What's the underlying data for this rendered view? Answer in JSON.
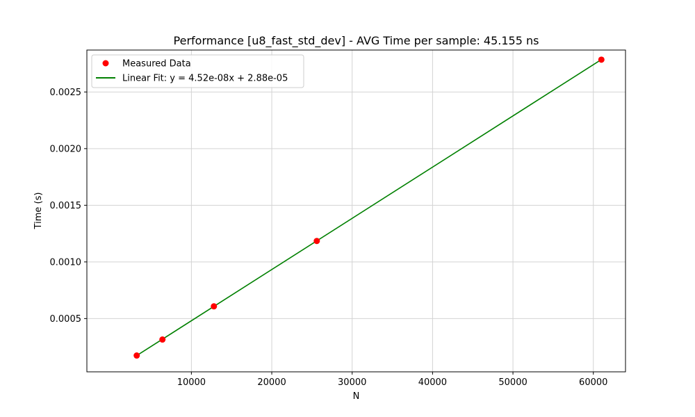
{
  "chart_data": {
    "type": "scatter",
    "title": "Performance [u8_fast_std_dev] - AVG Time per sample: 45.155 ns",
    "xlabel": "N",
    "ylabel": "Time (s)",
    "xlim": [
      -3000,
      64000
    ],
    "ylim": [
      3e-05,
      0.00287
    ],
    "x_ticks": [
      10000,
      20000,
      30000,
      40000,
      50000,
      60000
    ],
    "y_ticks": [
      0.0005,
      0.001,
      0.0015,
      0.002,
      0.0025
    ],
    "x_tick_labels": [
      "10000",
      "20000",
      "30000",
      "40000",
      "50000",
      "60000"
    ],
    "y_tick_labels": [
      "0.0005",
      "0.0010",
      "0.0015",
      "0.0020",
      "0.0025"
    ],
    "grid": true,
    "legend_position": "top-left",
    "series": [
      {
        "name": "Measured Data",
        "kind": "scatter",
        "color": "#ff0000",
        "x": [
          3200,
          6400,
          12800,
          25600,
          61000
        ],
        "y": [
          0.000174,
          0.000315,
          0.000608,
          0.001185,
          0.002785
        ]
      },
      {
        "name": "Linear Fit: y = 4.52e-08x + 2.88e-05",
        "kind": "line",
        "color": "#008000",
        "x": [
          3200,
          61000
        ],
        "y": [
          0.0001734,
          0.002786
        ]
      }
    ]
  }
}
